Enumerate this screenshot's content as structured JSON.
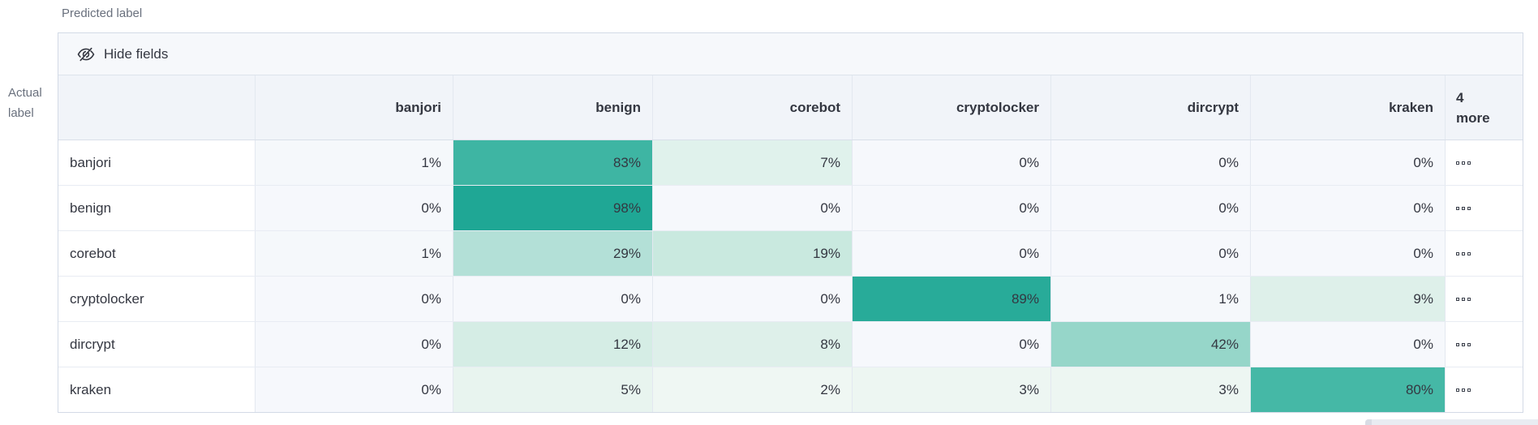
{
  "axes": {
    "predicted_label": "Predicted label",
    "actual_label": {
      "line1": "Actual",
      "line2": "label"
    }
  },
  "toolbar": {
    "hide_fields_label": "Hide fields"
  },
  "columns": [
    "banjori",
    "benign",
    "corebot",
    "cryptolocker",
    "dircrypt",
    "kraken"
  ],
  "more_header": {
    "line1": "4",
    "line2": "more"
  },
  "icons": {
    "hide_fields": "eye-closed-icon",
    "row_actions": "boxes-horizontal-icon"
  },
  "colors": {
    "grid_border": "#d3dae6",
    "header_bg": "#f1f4f9",
    "controls_bg": "#f6f8fb",
    "text": "#343741",
    "axis_text": "#69707d",
    "heat_max": "#1fa795",
    "heat_min": "#f6f8fc"
  },
  "rows": [
    {
      "label": "banjori",
      "cells": [
        {
          "text": "1%",
          "bg": "#f5f8fb"
        },
        {
          "text": "83%",
          "bg": "#3eb5a3"
        },
        {
          "text": "7%",
          "bg": "#e0f2ec"
        },
        {
          "text": "0%",
          "bg": "#f6f8fc"
        },
        {
          "text": "0%",
          "bg": "#f6f8fc"
        },
        {
          "text": "0%",
          "bg": "#f6f8fc"
        }
      ]
    },
    {
      "label": "benign",
      "cells": [
        {
          "text": "0%",
          "bg": "#f6f8fc"
        },
        {
          "text": "98%",
          "bg": "#1fa795"
        },
        {
          "text": "0%",
          "bg": "#f6f8fc"
        },
        {
          "text": "0%",
          "bg": "#f6f8fc"
        },
        {
          "text": "0%",
          "bg": "#f6f8fc"
        },
        {
          "text": "0%",
          "bg": "#f6f8fc"
        }
      ]
    },
    {
      "label": "corebot",
      "cells": [
        {
          "text": "1%",
          "bg": "#f5f8fb"
        },
        {
          "text": "29%",
          "bg": "#b3e0d7"
        },
        {
          "text": "19%",
          "bg": "#c9e9df"
        },
        {
          "text": "0%",
          "bg": "#f6f8fc"
        },
        {
          "text": "0%",
          "bg": "#f6f8fc"
        },
        {
          "text": "0%",
          "bg": "#f6f8fc"
        }
      ]
    },
    {
      "label": "cryptolocker",
      "cells": [
        {
          "text": "0%",
          "bg": "#f6f8fc"
        },
        {
          "text": "0%",
          "bg": "#f6f8fc"
        },
        {
          "text": "0%",
          "bg": "#f6f8fc"
        },
        {
          "text": "89%",
          "bg": "#28ab99"
        },
        {
          "text": "1%",
          "bg": "#f5f8fb"
        },
        {
          "text": "9%",
          "bg": "#def0ea"
        }
      ]
    },
    {
      "label": "dircrypt",
      "cells": [
        {
          "text": "0%",
          "bg": "#f6f8fc"
        },
        {
          "text": "12%",
          "bg": "#d5ede5"
        },
        {
          "text": "8%",
          "bg": "#def0ea"
        },
        {
          "text": "0%",
          "bg": "#f6f8fc"
        },
        {
          "text": "42%",
          "bg": "#96d6c9"
        },
        {
          "text": "0%",
          "bg": "#f6f8fc"
        }
      ]
    },
    {
      "label": "kraken",
      "cells": [
        {
          "text": "0%",
          "bg": "#f6f8fc"
        },
        {
          "text": "5%",
          "bg": "#e8f4ef"
        },
        {
          "text": "2%",
          "bg": "#eff7f3"
        },
        {
          "text": "3%",
          "bg": "#edf6f2"
        },
        {
          "text": "3%",
          "bg": "#edf6f2"
        },
        {
          "text": "80%",
          "bg": "#45b8a6"
        }
      ]
    }
  ],
  "chart_data": {
    "type": "heatmap",
    "xlabel": "Predicted label",
    "ylabel": "Actual label",
    "x_categories": [
      "banjori",
      "benign",
      "corebot",
      "cryptolocker",
      "dircrypt",
      "kraken"
    ],
    "x_truncated_note": "4 more",
    "y_categories": [
      "banjori",
      "benign",
      "corebot",
      "cryptolocker",
      "dircrypt",
      "kraken"
    ],
    "values_percent": [
      [
        1,
        83,
        7,
        0,
        0,
        0
      ],
      [
        0,
        98,
        0,
        0,
        0,
        0
      ],
      [
        1,
        29,
        19,
        0,
        0,
        0
      ],
      [
        0,
        0,
        0,
        89,
        1,
        9
      ],
      [
        0,
        12,
        8,
        0,
        42,
        0
      ],
      [
        0,
        5,
        2,
        3,
        3,
        80
      ]
    ],
    "legend": "off",
    "color_scale": [
      "#f6f8fc",
      "#1fa795"
    ]
  }
}
